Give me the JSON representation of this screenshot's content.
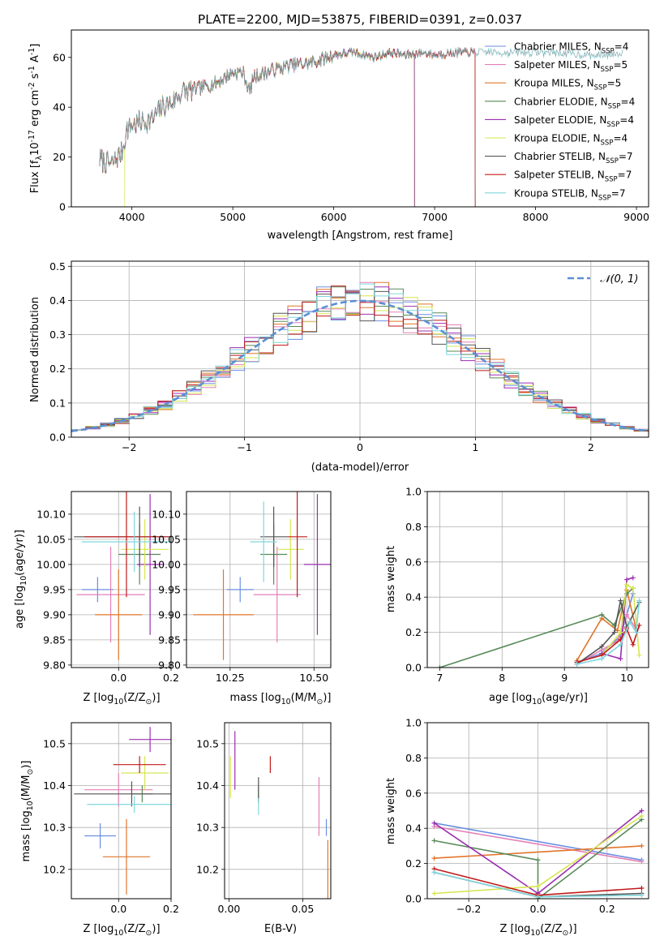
{
  "figure_title": "PLATE=2200, MJD=53875, FIBERID=0391, z=0.037",
  "colors": {
    "Chabrier MILES": "#6a8fe0",
    "Salpeter MILES": "#e47fb7",
    "Kroupa MILES": "#e0762a",
    "Chabrier ELODIE": "#5a8a5a",
    "Salpeter ELODIE": "#9b2fb0",
    "Kroupa ELODIE": "#d6e64f",
    "Chabrier STELIB": "#555555",
    "Salpeter STELIB": "#c21a1a",
    "Kroupa STELIB": "#7fd6dc",
    "gaussian": "#5b8fd6"
  },
  "chart_data": [
    {
      "id": "spectrum",
      "type": "line",
      "title": "PLATE=2200, MJD=53875, FIBERID=0391, z=0.037",
      "xlabel": "wavelength [Angstrom, rest frame]",
      "ylabel": "Flux [f$_\\lambda$10$^{-17}$ erg cm$^{-2}$ s$^{-1}$ A$^{-1}$]",
      "xlim": [
        3400,
        9120
      ],
      "ylim": [
        0,
        71
      ],
      "xticks": [
        4000,
        5000,
        6000,
        7000,
        8000,
        9000
      ],
      "yticks": [
        0,
        20,
        40,
        60
      ],
      "legend_position": "top-right",
      "legend": [
        {
          "series": "Chabrier MILES",
          "nssp": "4"
        },
        {
          "series": "Salpeter MILES",
          "nssp": "5"
        },
        {
          "series": "Kroupa MILES",
          "nssp": "5"
        },
        {
          "series": "Chabrier ELODIE",
          "nssp": "4"
        },
        {
          "series": "Salpeter ELODIE",
          "nssp": "4"
        },
        {
          "series": "Kroupa ELODIE",
          "nssp": "4"
        },
        {
          "series": "Chabrier STELIB",
          "nssp": "7"
        },
        {
          "series": "Salpeter STELIB",
          "nssp": "7"
        },
        {
          "series": "Kroupa STELIB",
          "nssp": "7"
        }
      ],
      "continuum": [
        [
          3680,
          19
        ],
        [
          3800,
          17
        ],
        [
          3900,
          22
        ],
        [
          3950,
          31
        ],
        [
          4000,
          33
        ],
        [
          4100,
          34
        ],
        [
          4200,
          35
        ],
        [
          4300,
          40
        ],
        [
          4400,
          42
        ],
        [
          4500,
          46
        ],
        [
          4700,
          48
        ],
        [
          4850,
          50
        ],
        [
          5000,
          54
        ],
        [
          5100,
          54
        ],
        [
          5170,
          46
        ],
        [
          5200,
          52
        ],
        [
          5400,
          55
        ],
        [
          5600,
          57
        ],
        [
          5800,
          58
        ],
        [
          6000,
          61
        ],
        [
          6200,
          62
        ],
        [
          6400,
          60
        ],
        [
          6563,
          62
        ],
        [
          6700,
          61
        ],
        [
          6900,
          62
        ],
        [
          7000,
          61
        ],
        [
          7200,
          62
        ],
        [
          7500,
          62
        ],
        [
          7800,
          62
        ],
        [
          8000,
          62
        ],
        [
          8200,
          62
        ],
        [
          8500,
          61
        ],
        [
          8700,
          61
        ],
        [
          8870,
          62
        ]
      ],
      "model_end": {
        "Chabrier MILES": 7400,
        "Salpeter MILES": 7400,
        "Kroupa MILES": 7400,
        "Chabrier ELODIE": 6800,
        "Salpeter ELODIE": 6800,
        "Kroupa ELODIE": 6790,
        "Chabrier STELIB": 7400,
        "Salpeter STELIB": 7400,
        "Kroupa STELIB": 8870
      },
      "dropouts": [
        {
          "series": "Kroupa ELODIE",
          "x": 3930
        },
        {
          "series": "Kroupa ELODIE",
          "x": 6790
        },
        {
          "series": "Salpeter STELIB",
          "x": 7410
        }
      ]
    },
    {
      "id": "residuals",
      "type": "histogram",
      "xlabel": "(data-model)/error",
      "ylabel": "Normed distribution",
      "xlim": [
        -2.5,
        2.5
      ],
      "ylim": [
        0,
        0.515
      ],
      "xticks": [
        -2,
        -1,
        0,
        1,
        2
      ],
      "yticks": [
        0.0,
        0.1,
        0.2,
        0.3,
        0.4,
        0.5
      ],
      "bin_edges_range": [
        -2.5,
        2.5
      ],
      "nbins": 40,
      "gaussian_legend": "$\\mathcal{N}(0,1)$",
      "legend_position": "top-right"
    },
    {
      "id": "age_vs_Z",
      "type": "scatter",
      "xlabel": "Z [log$_{10}$(Z/Z$_\\odot$)]",
      "ylabel": "age  [log$_{10}$(age/yr)]",
      "xlim": [
        -0.18,
        0.2
      ],
      "ylim": [
        9.795,
        10.145
      ],
      "xticks": [
        0.0,
        0.2
      ],
      "yticks": [
        9.8,
        9.85,
        9.9,
        9.95,
        10.0,
        10.05,
        10.1
      ],
      "points": [
        {
          "series": "Chabrier MILES",
          "x": -0.08,
          "xerr": 0.06,
          "y": 9.95,
          "yerr": 0.025
        },
        {
          "series": "Salpeter MILES",
          "x": -0.03,
          "xerr": 0.13,
          "y": 9.94,
          "yerr": 0.095
        },
        {
          "series": "Kroupa MILES",
          "x": 0.0,
          "xerr": 0.09,
          "y": 9.9,
          "yerr": 0.09
        },
        {
          "series": "Chabrier ELODIE",
          "x": 0.08,
          "xerr": 0.08,
          "y": 10.02,
          "yerr": 0.06
        },
        {
          "series": "Salpeter ELODIE",
          "x": 0.12,
          "xerr": 0.05,
          "y": 10.0,
          "yerr": 0.14
        },
        {
          "series": "Kroupa ELODIE",
          "x": 0.1,
          "xerr": 0.09,
          "y": 10.03,
          "yerr": 0.06
        },
        {
          "series": "Chabrier STELIB",
          "x": 0.08,
          "xerr": 0.25,
          "y": 10.055,
          "yerr": 0.06
        },
        {
          "series": "Salpeter STELIB",
          "x": 0.03,
          "xerr": 0.16,
          "y": 10.055,
          "yerr": 0.12
        },
        {
          "series": "Kroupa STELIB",
          "x": 0.06,
          "xerr": 0.2,
          "y": 10.045,
          "yerr": 0.06
        }
      ]
    },
    {
      "id": "age_vs_mass",
      "type": "scatter",
      "xlabel": "mass [log$_{10}$(M/M$_\\odot$)]",
      "ylabel": "",
      "xlim": [
        10.12,
        10.55
      ],
      "ylim": [
        9.795,
        10.145
      ],
      "xticks": [
        10.25,
        10.5
      ],
      "yticks": [
        9.8,
        9.85,
        9.9,
        9.95,
        10.0,
        10.05,
        10.1
      ],
      "points": [
        {
          "series": "Chabrier MILES",
          "x": 10.28,
          "xerr": 0.04,
          "y": 9.95,
          "yerr": 0.025
        },
        {
          "series": "Salpeter MILES",
          "x": 10.39,
          "xerr": 0.07,
          "y": 9.94,
          "yerr": 0.095
        },
        {
          "series": "Kroupa MILES",
          "x": 10.23,
          "xerr": 0.09,
          "y": 9.9,
          "yerr": 0.09
        },
        {
          "series": "Chabrier ELODIE",
          "x": 10.38,
          "xerr": 0.04,
          "y": 10.02,
          "yerr": 0.06
        },
        {
          "series": "Salpeter ELODIE",
          "x": 10.51,
          "xerr": 0.04,
          "y": 10.0,
          "yerr": 0.14
        },
        {
          "series": "Kroupa ELODIE",
          "x": 10.43,
          "xerr": 0.04,
          "y": 10.03,
          "yerr": 0.06
        },
        {
          "series": "Chabrier STELIB",
          "x": 10.38,
          "xerr": 0.04,
          "y": 10.055,
          "yerr": 0.06
        },
        {
          "series": "Salpeter STELIB",
          "x": 10.45,
          "xerr": 0.03,
          "y": 10.055,
          "yerr": 0.12
        },
        {
          "series": "Kroupa STELIB",
          "x": 10.35,
          "xerr": 0.04,
          "y": 10.045,
          "yerr": 0.08
        }
      ]
    },
    {
      "id": "weight_vs_age",
      "type": "line",
      "xlabel": "age  [log$_{10}$(age/yr)]",
      "ylabel": "mass weight",
      "xlim": [
        6.8,
        10.35
      ],
      "ylim": [
        0,
        1.0
      ],
      "xticks": [
        7,
        8,
        9,
        10
      ],
      "yticks": [
        0.0,
        0.2,
        0.4,
        0.6,
        0.8,
        1.0
      ],
      "series": [
        {
          "name": "Chabrier MILES",
          "points": [
            [
              9.2,
              0.03
            ],
            [
              9.6,
              0.08
            ],
            [
              9.9,
              0.18
            ],
            [
              10.0,
              0.3
            ],
            [
              10.1,
              0.42
            ]
          ]
        },
        {
          "name": "Salpeter MILES",
          "points": [
            [
              9.2,
              0.02
            ],
            [
              9.6,
              0.1
            ],
            [
              9.85,
              0.15
            ],
            [
              10.0,
              0.3
            ],
            [
              10.15,
              0.22
            ]
          ]
        },
        {
          "name": "Kroupa MILES",
          "points": [
            [
              9.2,
              0.04
            ],
            [
              9.6,
              0.28
            ],
            [
              9.85,
              0.21
            ],
            [
              10.0,
              0.44
            ],
            [
              10.15,
              0.22
            ]
          ]
        },
        {
          "name": "Chabrier ELODIE",
          "points": [
            [
              7.0,
              0.0
            ],
            [
              9.6,
              0.3
            ],
            [
              9.8,
              0.24
            ],
            [
              10.0,
              0.42
            ],
            [
              10.1,
              0.45
            ]
          ]
        },
        {
          "name": "Salpeter ELODIE",
          "points": [
            [
              9.6,
              0.08
            ],
            [
              9.9,
              0.05
            ],
            [
              10.0,
              0.5
            ],
            [
              10.1,
              0.51
            ]
          ]
        },
        {
          "name": "Kroupa ELODIE",
          "points": [
            [
              9.6,
              0.07
            ],
            [
              9.9,
              0.2
            ],
            [
              10.0,
              0.47
            ],
            [
              10.1,
              0.45
            ],
            [
              10.2,
              0.07
            ]
          ]
        },
        {
          "name": "Chabrier STELIB",
          "points": [
            [
              9.2,
              0.02
            ],
            [
              9.6,
              0.12
            ],
            [
              9.8,
              0.2
            ],
            [
              9.9,
              0.38
            ],
            [
              10.0,
              0.23
            ],
            [
              10.2,
              0.37
            ]
          ]
        },
        {
          "name": "Salpeter STELIB",
          "points": [
            [
              9.2,
              0.03
            ],
            [
              9.6,
              0.07
            ],
            [
              9.9,
              0.16
            ],
            [
              10.0,
              0.22
            ],
            [
              10.1,
              0.13
            ],
            [
              10.2,
              0.24
            ]
          ]
        },
        {
          "name": "Kroupa STELIB",
          "points": [
            [
              9.2,
              0.02
            ],
            [
              9.6,
              0.05
            ],
            [
              9.9,
              0.13
            ],
            [
              10.05,
              0.26
            ],
            [
              10.15,
              0.2
            ],
            [
              10.2,
              0.38
            ]
          ]
        }
      ]
    },
    {
      "id": "mass_vs_Z",
      "type": "scatter",
      "xlabel": "Z [log$_{10}$(Z/Z$_\\odot$)]",
      "ylabel": "mass [log$_{10}$(M/M$_\\odot$)]",
      "xlim": [
        -0.18,
        0.2
      ],
      "ylim": [
        10.13,
        10.55
      ],
      "xticks": [
        0.0,
        0.2
      ],
      "yticks": [
        10.2,
        10.3,
        10.4,
        10.5
      ],
      "points": [
        {
          "series": "Chabrier MILES",
          "x": -0.07,
          "xerr": 0.06,
          "y": 10.28,
          "yerr": 0.03
        },
        {
          "series": "Salpeter MILES",
          "x": 0.0,
          "xerr": 0.13,
          "y": 10.39,
          "yerr": 0.04
        },
        {
          "series": "Kroupa MILES",
          "x": 0.03,
          "xerr": 0.09,
          "y": 10.23,
          "yerr": 0.09
        },
        {
          "series": "Chabrier ELODIE",
          "x": 0.09,
          "xerr": 0.04,
          "y": 10.38,
          "yerr": 0.02
        },
        {
          "series": "Salpeter ELODIE",
          "x": 0.12,
          "xerr": 0.08,
          "y": 10.51,
          "yerr": 0.03
        },
        {
          "series": "Kroupa ELODIE",
          "x": 0.1,
          "xerr": 0.09,
          "y": 10.43,
          "yerr": 0.04
        },
        {
          "series": "Chabrier STELIB",
          "x": 0.05,
          "xerr": 0.22,
          "y": 10.38,
          "yerr": 0.03
        },
        {
          "series": "Salpeter STELIB",
          "x": 0.08,
          "xerr": 0.1,
          "y": 10.45,
          "yerr": 0.02
        },
        {
          "series": "Kroupa STELIB",
          "x": 0.06,
          "xerr": 0.18,
          "y": 10.355,
          "yerr": 0.02
        }
      ]
    },
    {
      "id": "mass_vs_ebv",
      "type": "scatter",
      "xlabel": "E(B-V)",
      "ylabel": "",
      "xlim": [
        -0.003,
        0.069
      ],
      "ylim": [
        10.13,
        10.55
      ],
      "xticks": [
        0.0,
        0.05
      ],
      "yticks": [
        10.2,
        10.3,
        10.4,
        10.5
      ],
      "points": [
        {
          "series": "Chabrier MILES",
          "x": 0.066,
          "xerr": 0,
          "y": 10.3,
          "yerr": 0.02
        },
        {
          "series": "Salpeter MILES",
          "x": 0.061,
          "xerr": 0,
          "y": 10.35,
          "yerr": 0.07
        },
        {
          "series": "Kroupa MILES",
          "x": 0.067,
          "xerr": 0,
          "y": 10.2,
          "yerr": 0.07
        },
        {
          "series": "Chabrier ELODIE",
          "x": 0.02,
          "xerr": 0,
          "y": 10.38,
          "yerr": 0.02
        },
        {
          "series": "Salpeter ELODIE",
          "x": 0.004,
          "xerr": 0,
          "y": 10.46,
          "yerr": 0.07
        },
        {
          "series": "Kroupa ELODIE",
          "x": 0.001,
          "xerr": 0,
          "y": 10.42,
          "yerr": 0.05
        },
        {
          "series": "Chabrier STELIB",
          "x": 0.02,
          "xerr": 0,
          "y": 10.39,
          "yerr": 0.03
        },
        {
          "series": "Salpeter STELIB",
          "x": 0.028,
          "xerr": 0,
          "y": 10.45,
          "yerr": 0.02
        },
        {
          "series": "Kroupa STELIB",
          "x": 0.02,
          "xerr": 0,
          "y": 10.35,
          "yerr": 0.02
        }
      ]
    },
    {
      "id": "weight_vs_Z",
      "type": "line",
      "xlabel": "Z [log$_{10}$(Z/Z$_\\odot$)]",
      "ylabel": "mass weight",
      "xlim": [
        -0.32,
        0.32
      ],
      "ylim": [
        0,
        1.0
      ],
      "xticks": [
        -0.2,
        0.0,
        0.2
      ],
      "yticks": [
        0.0,
        0.2,
        0.4,
        0.6,
        0.8,
        1.0
      ],
      "series": [
        {
          "name": "Chabrier MILES",
          "points": [
            [
              -0.3,
              0.43
            ],
            [
              0.3,
              0.22
            ]
          ]
        },
        {
          "name": "Salpeter MILES",
          "points": [
            [
              -0.3,
              0.41
            ],
            [
              0.3,
              0.21
            ]
          ]
        },
        {
          "name": "Kroupa MILES",
          "points": [
            [
              -0.3,
              0.23
            ],
            [
              0.3,
              0.3
            ]
          ]
        },
        {
          "name": "Chabrier ELODIE",
          "points": [
            [
              -0.3,
              0.33
            ],
            [
              0.0,
              0.22
            ],
            [
              0.0,
              0.0
            ],
            [
              0.3,
              0.45
            ]
          ]
        },
        {
          "name": "Salpeter ELODIE",
          "points": [
            [
              -0.3,
              0.43
            ],
            [
              0.0,
              0.03
            ],
            [
              0.3,
              0.5
            ]
          ]
        },
        {
          "name": "Kroupa ELODIE",
          "points": [
            [
              -0.3,
              0.03
            ],
            [
              0.0,
              0.07
            ],
            [
              0.3,
              0.47
            ]
          ]
        },
        {
          "name": "Chabrier STELIB",
          "points": [
            [
              -0.3,
              0.15
            ],
            [
              0.0,
              0.01
            ],
            [
              0.3,
              0.03
            ]
          ]
        },
        {
          "name": "Salpeter STELIB",
          "points": [
            [
              -0.3,
              0.17
            ],
            [
              0.0,
              0.02
            ],
            [
              0.3,
              0.06
            ]
          ]
        },
        {
          "name": "Kroupa STELIB",
          "points": [
            [
              -0.3,
              0.15
            ],
            [
              0.0,
              0.01
            ],
            [
              0.3,
              0.02
            ]
          ]
        }
      ]
    }
  ]
}
